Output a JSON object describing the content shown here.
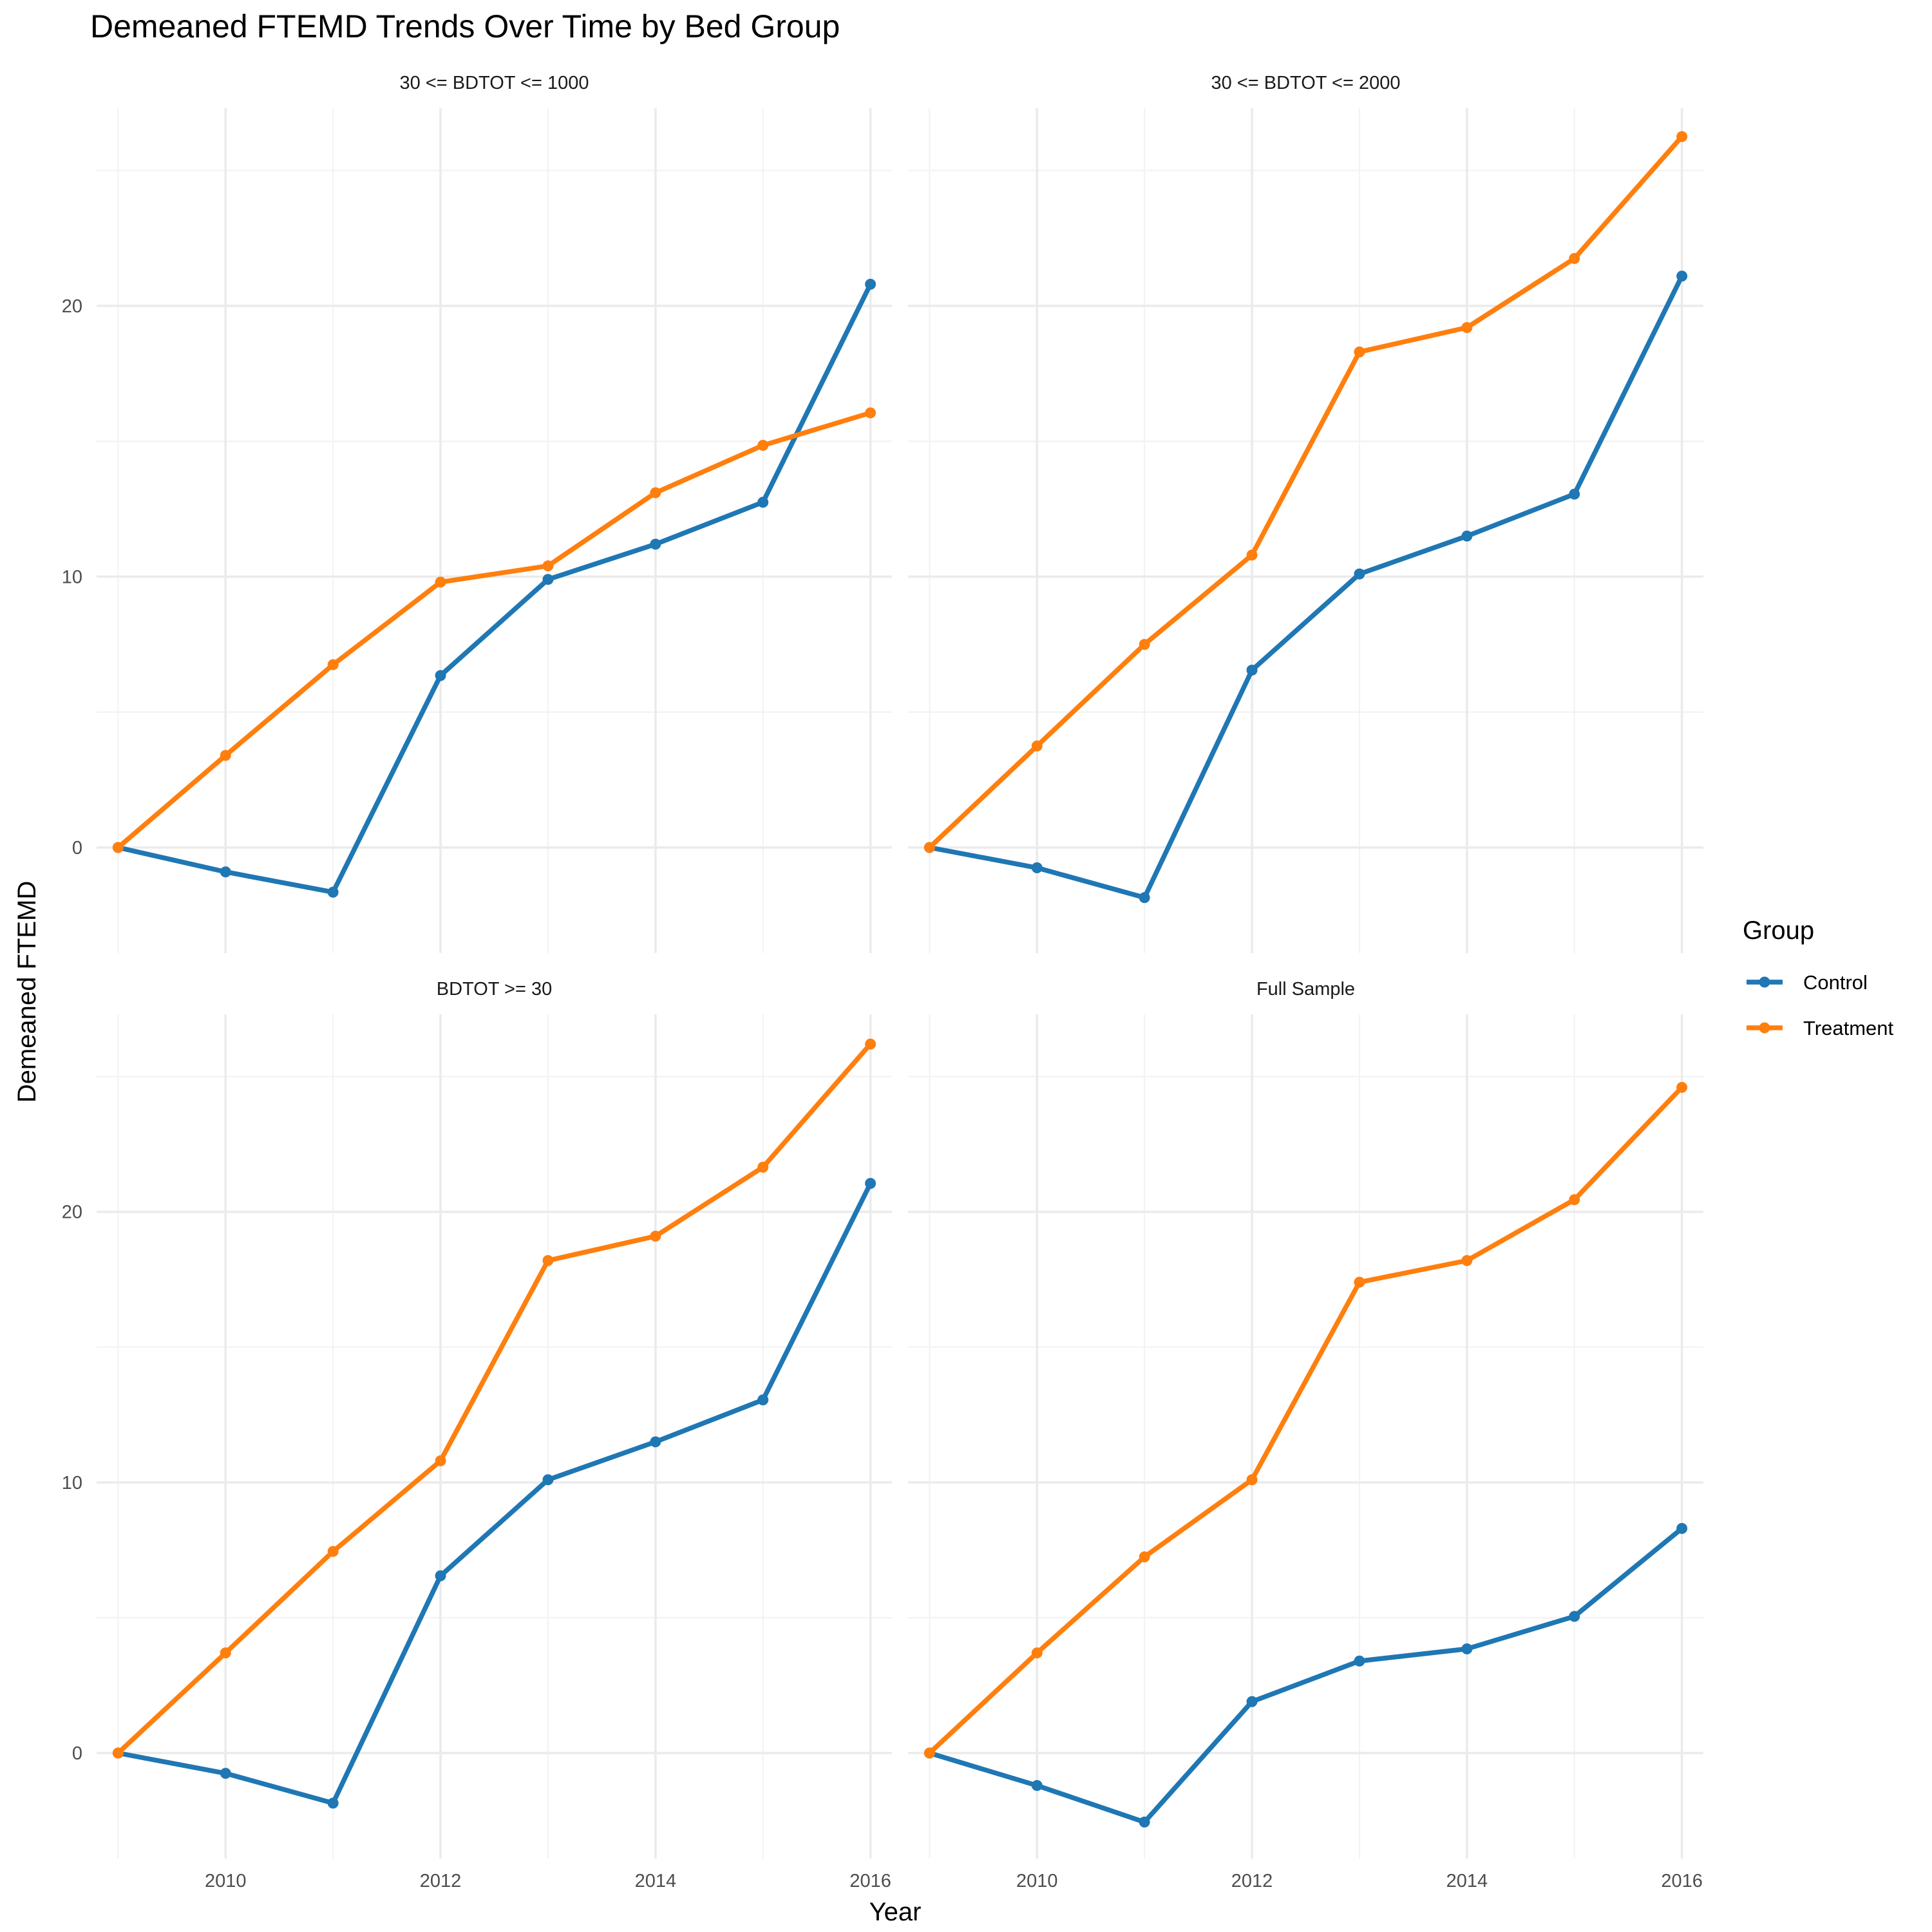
{
  "chart_data": {
    "type": "line",
    "title": "Demeaned FTEMD Trends Over Time by Bed Group",
    "xlabel": "Year",
    "ylabel": "Demeaned FTEMD",
    "x_ticks": [
      2010,
      2012,
      2014,
      2016
    ],
    "y_ticks": [
      0,
      10,
      20
    ],
    "xlim": [
      2008.8,
      2016.2
    ],
    "ylim": [
      -3.9,
      27.3
    ],
    "grid": true,
    "legend": {
      "title": "Group",
      "position": "right",
      "entries": [
        "Control",
        "Treatment"
      ]
    },
    "colors": {
      "Control": "#1f77b4",
      "Treatment": "#ff7f0e"
    },
    "x": [
      2009,
      2010,
      2011,
      2012,
      2013,
      2014,
      2015,
      2016
    ],
    "panels": [
      {
        "label": "30 <= BDTOT <= 1000",
        "series": [
          {
            "name": "Control",
            "values": [
              0,
              -0.9,
              -1.65,
              6.35,
              9.9,
              11.2,
              12.75,
              20.8
            ]
          },
          {
            "name": "Treatment",
            "values": [
              0,
              3.4,
              6.75,
              9.8,
              10.4,
              13.1,
              14.85,
              16.05
            ]
          }
        ]
      },
      {
        "label": "30 <= BDTOT <= 2000",
        "series": [
          {
            "name": "Control",
            "values": [
              0,
              -0.75,
              -1.85,
              6.55,
              10.1,
              11.5,
              13.05,
              21.1
            ]
          },
          {
            "name": "Treatment",
            "values": [
              0,
              3.75,
              7.5,
              10.8,
              18.3,
              19.2,
              21.75,
              26.25
            ]
          }
        ]
      },
      {
        "label": "BDTOT >= 30",
        "series": [
          {
            "name": "Control",
            "values": [
              0,
              -0.75,
              -1.85,
              6.55,
              10.1,
              11.5,
              13.05,
              21.05
            ]
          },
          {
            "name": "Treatment",
            "values": [
              0,
              3.7,
              7.45,
              10.8,
              18.2,
              19.1,
              21.65,
              26.2
            ]
          }
        ]
      },
      {
        "label": "Full Sample",
        "series": [
          {
            "name": "Control",
            "values": [
              0,
              -1.2,
              -2.55,
              1.9,
              3.4,
              3.85,
              5.05,
              8.3
            ]
          },
          {
            "name": "Treatment",
            "values": [
              0,
              3.7,
              7.25,
              10.1,
              17.4,
              18.2,
              20.45,
              24.6
            ]
          }
        ]
      }
    ]
  }
}
